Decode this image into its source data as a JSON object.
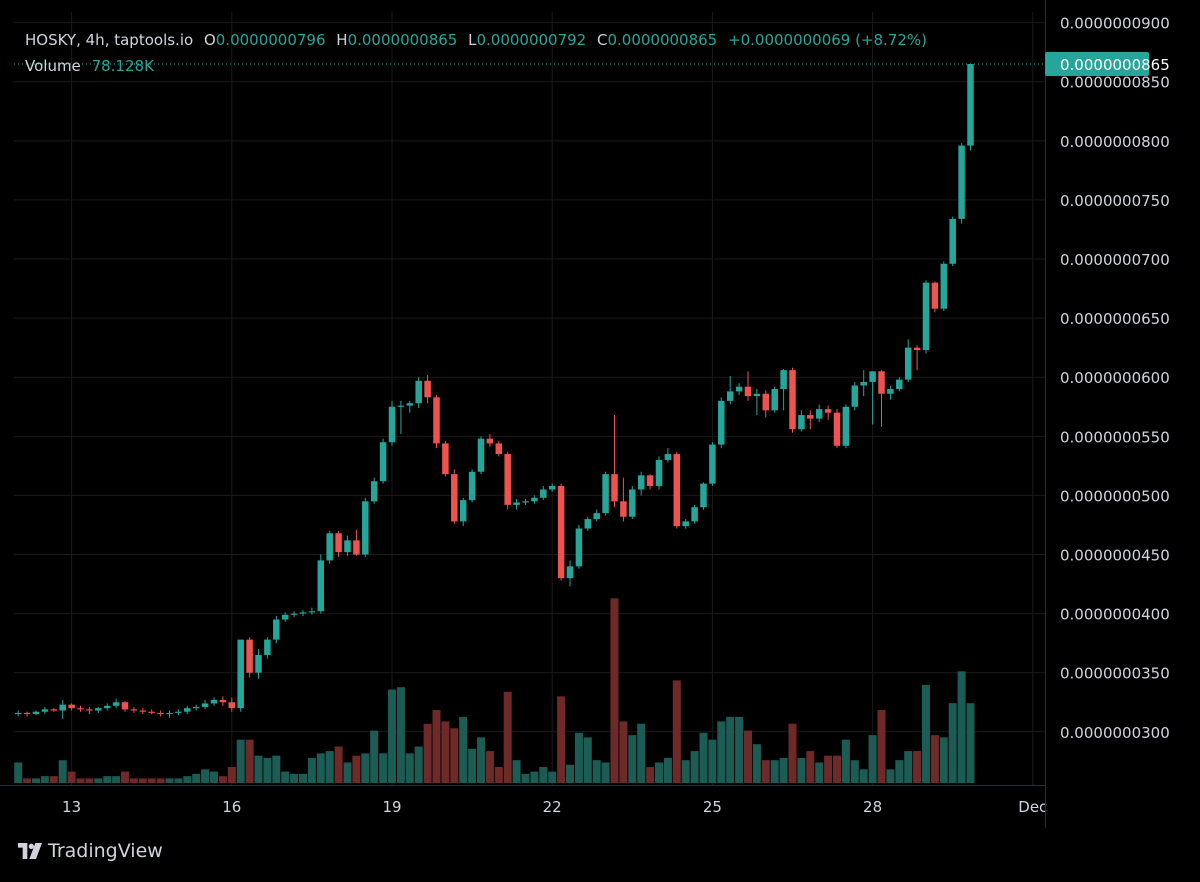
{
  "legend": {
    "symbol": "HOSKY",
    "interval": "4h",
    "source": "taptools.io",
    "open_label": "O",
    "open": "0.0000000796",
    "high_label": "H",
    "high": "0.0000000865",
    "low_label": "L",
    "low": "0.0000000792",
    "close_label": "C",
    "close": "0.0000000865",
    "change": "+0.0000000069 (+8.72%)",
    "volume_label": "Volume",
    "volume": "78.128K"
  },
  "branding": {
    "name": "TradingView",
    "icon": "tradingview-logo-icon"
  },
  "colors": {
    "up": "#26a69a",
    "down": "#ef5350",
    "up_volume": "#1d5c55",
    "down_volume": "#6e2a28",
    "grid": "#1a1a1a",
    "text": "#d1d4dc",
    "background": "#000000"
  },
  "chart_data": {
    "type": "candlestick",
    "current_price_label": "0.0000000865",
    "y_ticks": [
      "0.0000000300",
      "0.0000000350",
      "0.0000000400",
      "0.0000000450",
      "0.0000000500",
      "0.0000000550",
      "0.0000000600",
      "0.0000000650",
      "0.0000000700",
      "0.0000000750",
      "0.0000000800",
      "0.0000000850",
      "0.0000000900"
    ],
    "ylim": [
      2.55e-08,
      9.09e-08
    ],
    "x_ticks": [
      {
        "label": "13",
        "index": 6
      },
      {
        "label": "16",
        "index": 24
      },
      {
        "label": "19",
        "index": 42
      },
      {
        "label": "22",
        "index": 60
      },
      {
        "label": "25",
        "index": 78
      },
      {
        "label": "28",
        "index": 96
      },
      {
        "label": "Dec",
        "index": 114
      }
    ],
    "grid": true,
    "series": [
      {
        "o": 3.15e-08,
        "h": 3.18e-08,
        "l": 3.13e-08,
        "c": 3.16e-08,
        "v": 0.09
      },
      {
        "o": 3.16e-08,
        "h": 3.17e-08,
        "l": 3.13e-08,
        "c": 3.15e-08,
        "v": 0.02
      },
      {
        "o": 3.15e-08,
        "h": 3.18e-08,
        "l": 3.14e-08,
        "c": 3.17e-08,
        "v": 0.02
      },
      {
        "o": 3.17e-08,
        "h": 3.21e-08,
        "l": 3.15e-08,
        "c": 3.19e-08,
        "v": 0.03
      },
      {
        "o": 3.19e-08,
        "h": 3.2e-08,
        "l": 3.17e-08,
        "c": 3.18e-08,
        "v": 0.03
      },
      {
        "o": 3.18e-08,
        "h": 3.27e-08,
        "l": 3.11e-08,
        "c": 3.23e-08,
        "v": 0.1
      },
      {
        "o": 3.23e-08,
        "h": 3.24e-08,
        "l": 3.18e-08,
        "c": 3.2e-08,
        "v": 0.05
      },
      {
        "o": 3.2e-08,
        "h": 3.22e-08,
        "l": 3.17e-08,
        "c": 3.19e-08,
        "v": 0.02
      },
      {
        "o": 3.19e-08,
        "h": 3.21e-08,
        "l": 3.15e-08,
        "c": 3.18e-08,
        "v": 0.02
      },
      {
        "o": 3.18e-08,
        "h": 3.21e-08,
        "l": 3.16e-08,
        "c": 3.2e-08,
        "v": 0.02
      },
      {
        "o": 3.2e-08,
        "h": 3.24e-08,
        "l": 3.18e-08,
        "c": 3.22e-08,
        "v": 0.03
      },
      {
        "o": 3.22e-08,
        "h": 3.28e-08,
        "l": 3.2e-08,
        "c": 3.25e-08,
        "v": 0.03
      },
      {
        "o": 3.25e-08,
        "h": 3.26e-08,
        "l": 3.17e-08,
        "c": 3.19e-08,
        "v": 0.05
      },
      {
        "o": 3.19e-08,
        "h": 3.21e-08,
        "l": 3.16e-08,
        "c": 3.18e-08,
        "v": 0.02
      },
      {
        "o": 3.18e-08,
        "h": 3.2e-08,
        "l": 3.15e-08,
        "c": 3.17e-08,
        "v": 0.02
      },
      {
        "o": 3.17e-08,
        "h": 3.19e-08,
        "l": 3.15e-08,
        "c": 3.16e-08,
        "v": 0.02
      },
      {
        "o": 3.16e-08,
        "h": 3.18e-08,
        "l": 3.13e-08,
        "c": 3.15e-08,
        "v": 0.02
      },
      {
        "o": 3.15e-08,
        "h": 3.18e-08,
        "l": 3.12e-08,
        "c": 3.16e-08,
        "v": 0.02
      },
      {
        "o": 3.16e-08,
        "h": 3.19e-08,
        "l": 3.14e-08,
        "c": 3.17e-08,
        "v": 0.02
      },
      {
        "o": 3.17e-08,
        "h": 3.22e-08,
        "l": 3.15e-08,
        "c": 3.2e-08,
        "v": 0.03
      },
      {
        "o": 3.2e-08,
        "h": 3.23e-08,
        "l": 3.18e-08,
        "c": 3.21e-08,
        "v": 0.04
      },
      {
        "o": 3.21e-08,
        "h": 3.27e-08,
        "l": 3.19e-08,
        "c": 3.24e-08,
        "v": 0.06
      },
      {
        "o": 3.24e-08,
        "h": 3.29e-08,
        "l": 3.22e-08,
        "c": 3.27e-08,
        "v": 0.05
      },
      {
        "o": 3.27e-08,
        "h": 3.3e-08,
        "l": 3.22e-08,
        "c": 3.25e-08,
        "v": 0.03
      },
      {
        "o": 3.25e-08,
        "h": 3.29e-08,
        "l": 3.17e-08,
        "c": 3.2e-08,
        "v": 0.07
      },
      {
        "o": 3.2e-08,
        "h": 3.78e-08,
        "l": 3.17e-08,
        "c": 3.78e-08,
        "v": 0.19
      },
      {
        "o": 3.78e-08,
        "h": 3.8e-08,
        "l": 3.46e-08,
        "c": 3.5e-08,
        "v": 0.19
      },
      {
        "o": 3.5e-08,
        "h": 3.7e-08,
        "l": 3.45e-08,
        "c": 3.65e-08,
        "v": 0.12
      },
      {
        "o": 3.65e-08,
        "h": 3.8e-08,
        "l": 3.62e-08,
        "c": 3.78e-08,
        "v": 0.11
      },
      {
        "o": 3.78e-08,
        "h": 3.98e-08,
        "l": 3.75e-08,
        "c": 3.95e-08,
        "v": 0.12
      },
      {
        "o": 3.95e-08,
        "h": 4.01e-08,
        "l": 3.93e-08,
        "c": 3.99e-08,
        "v": 0.05
      },
      {
        "o": 3.99e-08,
        "h": 4.02e-08,
        "l": 3.97e-08,
        "c": 4e-08,
        "v": 0.04
      },
      {
        "o": 4e-08,
        "h": 4.03e-08,
        "l": 3.98e-08,
        "c": 4.01e-08,
        "v": 0.04
      },
      {
        "o": 4.01e-08,
        "h": 4.05e-08,
        "l": 3.99e-08,
        "c": 4.02e-08,
        "v": 0.11
      },
      {
        "o": 4.02e-08,
        "h": 4.5e-08,
        "l": 4e-08,
        "c": 4.45e-08,
        "v": 0.13
      },
      {
        "o": 4.45e-08,
        "h": 4.7e-08,
        "l": 4.42e-08,
        "c": 4.68e-08,
        "v": 0.14
      },
      {
        "o": 4.68e-08,
        "h": 4.7e-08,
        "l": 4.48e-08,
        "c": 4.52e-08,
        "v": 0.16
      },
      {
        "o": 4.52e-08,
        "h": 4.66e-08,
        "l": 4.49e-08,
        "c": 4.62e-08,
        "v": 0.09
      },
      {
        "o": 4.62e-08,
        "h": 4.71e-08,
        "l": 4.49e-08,
        "c": 4.5e-08,
        "v": 0.12
      },
      {
        "o": 4.5e-08,
        "h": 4.98e-08,
        "l": 4.48e-08,
        "c": 4.95e-08,
        "v": 0.13
      },
      {
        "o": 4.95e-08,
        "h": 5.15e-08,
        "l": 4.93e-08,
        "c": 5.12e-08,
        "v": 0.23
      },
      {
        "o": 5.12e-08,
        "h": 5.48e-08,
        "l": 5.1e-08,
        "c": 5.45e-08,
        "v": 0.13
      },
      {
        "o": 5.45e-08,
        "h": 5.8e-08,
        "l": 5.42e-08,
        "c": 5.75e-08,
        "v": 0.41
      },
      {
        "o": 5.75e-08,
        "h": 5.8e-08,
        "l": 5.52e-08,
        "c": 5.76e-08,
        "v": 0.42
      },
      {
        "o": 5.76e-08,
        "h": 5.8e-08,
        "l": 5.7e-08,
        "c": 5.78e-08,
        "v": 0.13
      },
      {
        "o": 5.78e-08,
        "h": 6e-08,
        "l": 5.74e-08,
        "c": 5.97e-08,
        "v": 0.16
      },
      {
        "o": 5.97e-08,
        "h": 6.02e-08,
        "l": 5.78e-08,
        "c": 5.83e-08,
        "v": 0.26
      },
      {
        "o": 5.83e-08,
        "h": 5.85e-08,
        "l": 5.4e-08,
        "c": 5.44e-08,
        "v": 0.32
      },
      {
        "o": 5.44e-08,
        "h": 5.46e-08,
        "l": 5.16e-08,
        "c": 5.18e-08,
        "v": 0.27
      },
      {
        "o": 5.18e-08,
        "h": 5.22e-08,
        "l": 4.76e-08,
        "c": 4.78e-08,
        "v": 0.24
      },
      {
        "o": 4.78e-08,
        "h": 4.98e-08,
        "l": 4.74e-08,
        "c": 4.96e-08,
        "v": 0.29
      },
      {
        "o": 4.96e-08,
        "h": 5.22e-08,
        "l": 4.94e-08,
        "c": 5.2e-08,
        "v": 0.15
      },
      {
        "o": 5.2e-08,
        "h": 5.5e-08,
        "l": 5.18e-08,
        "c": 5.48e-08,
        "v": 0.2
      },
      {
        "o": 5.48e-08,
        "h": 5.52e-08,
        "l": 5.41e-08,
        "c": 5.44e-08,
        "v": 0.14
      },
      {
        "o": 5.44e-08,
        "h": 5.46e-08,
        "l": 5.33e-08,
        "c": 5.35e-08,
        "v": 0.07
      },
      {
        "o": 5.35e-08,
        "h": 5.37e-08,
        "l": 4.88e-08,
        "c": 4.92e-08,
        "v": 0.4
      },
      {
        "o": 4.92e-08,
        "h": 4.97e-08,
        "l": 4.88e-08,
        "c": 4.94e-08,
        "v": 0.1
      },
      {
        "o": 4.94e-08,
        "h": 4.97e-08,
        "l": 4.92e-08,
        "c": 4.95e-08,
        "v": 0.04
      },
      {
        "o": 4.95e-08,
        "h": 5e-08,
        "l": 4.93e-08,
        "c": 4.98e-08,
        "v": 0.05
      },
      {
        "o": 4.98e-08,
        "h": 5.08e-08,
        "l": 4.96e-08,
        "c": 5.05e-08,
        "v": 0.07
      },
      {
        "o": 5.05e-08,
        "h": 5.1e-08,
        "l": 5.03e-08,
        "c": 5.08e-08,
        "v": 0.05
      },
      {
        "o": 5.08e-08,
        "h": 5.1e-08,
        "l": 4.28e-08,
        "c": 4.3e-08,
        "v": 0.38
      },
      {
        "o": 4.3e-08,
        "h": 4.45e-08,
        "l": 4.23e-08,
        "c": 4.4e-08,
        "v": 0.08
      },
      {
        "o": 4.4e-08,
        "h": 4.75e-08,
        "l": 4.38e-08,
        "c": 4.72e-08,
        "v": 0.22
      },
      {
        "o": 4.72e-08,
        "h": 4.82e-08,
        "l": 4.7e-08,
        "c": 4.8e-08,
        "v": 0.2
      },
      {
        "o": 4.8e-08,
        "h": 4.88e-08,
        "l": 4.78e-08,
        "c": 4.85e-08,
        "v": 0.1
      },
      {
        "o": 4.85e-08,
        "h": 5.2e-08,
        "l": 4.83e-08,
        "c": 5.18e-08,
        "v": 0.09
      },
      {
        "o": 5.18e-08,
        "h": 5.68e-08,
        "l": 4.9e-08,
        "c": 4.95e-08,
        "v": 0.81
      },
      {
        "o": 4.95e-08,
        "h": 5.15e-08,
        "l": 4.78e-08,
        "c": 4.82e-08,
        "v": 0.27
      },
      {
        "o": 4.82e-08,
        "h": 5.08e-08,
        "l": 4.8e-08,
        "c": 5.05e-08,
        "v": 0.21
      },
      {
        "o": 5.05e-08,
        "h": 5.2e-08,
        "l": 5e-08,
        "c": 5.17e-08,
        "v": 0.26
      },
      {
        "o": 5.17e-08,
        "h": 5.18e-08,
        "l": 5.05e-08,
        "c": 5.08e-08,
        "v": 0.07
      },
      {
        "o": 5.08e-08,
        "h": 5.33e-08,
        "l": 5.05e-08,
        "c": 5.3e-08,
        "v": 0.09
      },
      {
        "o": 5.3e-08,
        "h": 5.4e-08,
        "l": 5.28e-08,
        "c": 5.35e-08,
        "v": 0.11
      },
      {
        "o": 5.35e-08,
        "h": 5.37e-08,
        "l": 4.72e-08,
        "c": 4.74e-08,
        "v": 0.45
      },
      {
        "o": 4.74e-08,
        "h": 4.8e-08,
        "l": 4.72e-08,
        "c": 4.78e-08,
        "v": 0.1
      },
      {
        "o": 4.78e-08,
        "h": 4.92e-08,
        "l": 4.76e-08,
        "c": 4.9e-08,
        "v": 0.14
      },
      {
        "o": 4.9e-08,
        "h": 5.11e-08,
        "l": 4.88e-08,
        "c": 5.1e-08,
        "v": 0.22
      },
      {
        "o": 5.1e-08,
        "h": 5.45e-08,
        "l": 5.08e-08,
        "c": 5.43e-08,
        "v": 0.19
      },
      {
        "o": 5.43e-08,
        "h": 5.83e-08,
        "l": 5.4e-08,
        "c": 5.8e-08,
        "v": 0.27
      },
      {
        "o": 5.8e-08,
        "h": 6.01e-08,
        "l": 5.77e-08,
        "c": 5.88e-08,
        "v": 0.29
      },
      {
        "o": 5.88e-08,
        "h": 5.95e-08,
        "l": 5.85e-08,
        "c": 5.92e-08,
        "v": 0.29
      },
      {
        "o": 5.92e-08,
        "h": 6.05e-08,
        "l": 5.8e-08,
        "c": 5.84e-08,
        "v": 0.23
      },
      {
        "o": 5.84e-08,
        "h": 5.9e-08,
        "l": 5.68e-08,
        "c": 5.86e-08,
        "v": 0.17
      },
      {
        "o": 5.86e-08,
        "h": 5.89e-08,
        "l": 5.66e-08,
        "c": 5.72e-08,
        "v": 0.1
      },
      {
        "o": 5.72e-08,
        "h": 5.92e-08,
        "l": 5.7e-08,
        "c": 5.9e-08,
        "v": 0.1
      },
      {
        "o": 5.9e-08,
        "h": 6.07e-08,
        "l": 5.72e-08,
        "c": 6.06e-08,
        "v": 0.11
      },
      {
        "o": 6.06e-08,
        "h": 6.08e-08,
        "l": 5.53e-08,
        "c": 5.56e-08,
        "v": 0.26
      },
      {
        "o": 5.56e-08,
        "h": 5.72e-08,
        "l": 5.54e-08,
        "c": 5.68e-08,
        "v": 0.11
      },
      {
        "o": 5.68e-08,
        "h": 5.72e-08,
        "l": 5.56e-08,
        "c": 5.65e-08,
        "v": 0.14
      },
      {
        "o": 5.65e-08,
        "h": 5.77e-08,
        "l": 5.62e-08,
        "c": 5.73e-08,
        "v": 0.09
      },
      {
        "o": 5.73e-08,
        "h": 5.76e-08,
        "l": 5.64e-08,
        "c": 5.7e-08,
        "v": 0.12
      },
      {
        "o": 5.7e-08,
        "h": 5.73e-08,
        "l": 5.4e-08,
        "c": 5.42e-08,
        "v": 0.12
      },
      {
        "o": 5.42e-08,
        "h": 5.77e-08,
        "l": 5.4e-08,
        "c": 5.75e-08,
        "v": 0.19
      },
      {
        "o": 5.75e-08,
        "h": 5.96e-08,
        "l": 5.72e-08,
        "c": 5.93e-08,
        "v": 0.1
      },
      {
        "o": 5.93e-08,
        "h": 6.06e-08,
        "l": 5.84e-08,
        "c": 5.96e-08,
        "v": 0.06
      },
      {
        "o": 5.96e-08,
        "h": 6.05e-08,
        "l": 5.6e-08,
        "c": 6.05e-08,
        "v": 0.21
      },
      {
        "o": 6.05e-08,
        "h": 6.06e-08,
        "l": 5.58e-08,
        "c": 5.86e-08,
        "v": 0.32
      },
      {
        "o": 5.86e-08,
        "h": 5.93e-08,
        "l": 5.81e-08,
        "c": 5.9e-08,
        "v": 0.06
      },
      {
        "o": 5.9e-08,
        "h": 6e-08,
        "l": 5.88e-08,
        "c": 5.98e-08,
        "v": 0.1
      },
      {
        "o": 5.98e-08,
        "h": 6.32e-08,
        "l": 5.96e-08,
        "c": 6.25e-08,
        "v": 0.14
      },
      {
        "o": 6.25e-08,
        "h": 6.27e-08,
        "l": 6.06e-08,
        "c": 6.23e-08,
        "v": 0.14
      },
      {
        "o": 6.23e-08,
        "h": 6.82e-08,
        "l": 6.2e-08,
        "c": 6.8e-08,
        "v": 0.43
      },
      {
        "o": 6.8e-08,
        "h": 6.81e-08,
        "l": 6.55e-08,
        "c": 6.58e-08,
        "v": 0.21
      },
      {
        "o": 6.58e-08,
        "h": 6.98e-08,
        "l": 6.56e-08,
        "c": 6.96e-08,
        "v": 0.2
      },
      {
        "o": 6.96e-08,
        "h": 7.36e-08,
        "l": 6.94e-08,
        "c": 7.34e-08,
        "v": 0.35
      },
      {
        "o": 7.34e-08,
        "h": 7.98e-08,
        "l": 7.3e-08,
        "c": 7.96e-08,
        "v": 0.49
      },
      {
        "o": 7.96e-08,
        "h": 8.65e-08,
        "l": 7.92e-08,
        "c": 8.65e-08,
        "v": 0.35
      }
    ]
  }
}
